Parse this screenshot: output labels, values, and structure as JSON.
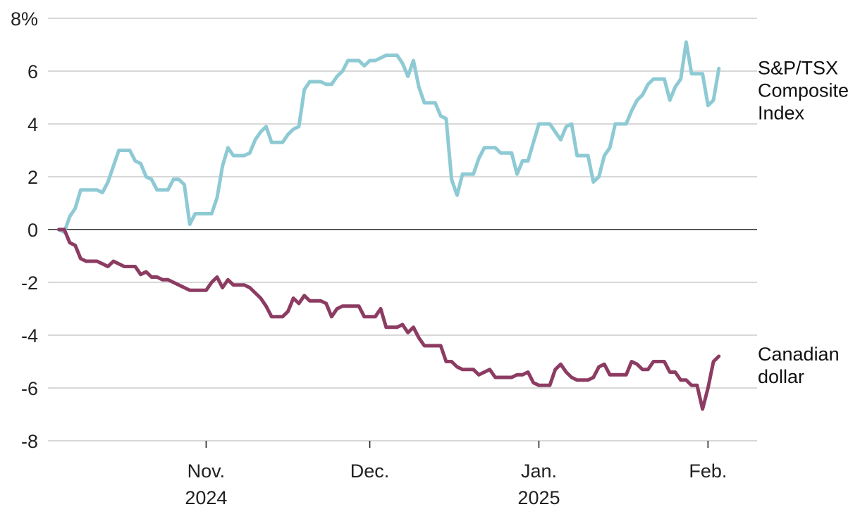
{
  "chart_data": {
    "type": "line",
    "title": "",
    "xlabel": "",
    "ylabel": "",
    "y_unit_suffix": "%",
    "ylim": [
      -8,
      8
    ],
    "y_ticks": [
      8,
      6,
      4,
      2,
      0,
      -2,
      -4,
      -6,
      -8
    ],
    "y_tick_labels": [
      "8%",
      "6",
      "4",
      "2",
      "0",
      "-2",
      "-4",
      "-6",
      "-8"
    ],
    "x_range_days": [
      0,
      130
    ],
    "x_ticks": [
      {
        "day": 29,
        "label_line1": "Nov.",
        "label_line2": "2024"
      },
      {
        "day": 59,
        "label_line1": "Dec.",
        "label_line2": ""
      },
      {
        "day": 90,
        "label_line1": "Jan.",
        "label_line2": "2025"
      },
      {
        "day": 121,
        "label_line1": "Feb.",
        "label_line2": ""
      }
    ],
    "series": [
      {
        "name": "S&P/TSX Composite Index",
        "label_lines": [
          "S&P/TSX",
          "Composite",
          "Index"
        ],
        "color": "#8ecad4",
        "points": [
          [
            2,
            0.0
          ],
          [
            3,
            -0.1
          ],
          [
            4,
            0.5
          ],
          [
            5,
            0.8
          ],
          [
            6,
            1.5
          ],
          [
            7,
            1.5
          ],
          [
            8,
            1.5
          ],
          [
            9,
            1.5
          ],
          [
            10,
            1.4
          ],
          [
            11,
            1.8
          ],
          [
            12,
            2.4
          ],
          [
            13,
            3.0
          ],
          [
            14,
            3.0
          ],
          [
            15,
            3.0
          ],
          [
            16,
            2.6
          ],
          [
            17,
            2.5
          ],
          [
            18,
            2.0
          ],
          [
            19,
            1.9
          ],
          [
            20,
            1.5
          ],
          [
            21,
            1.5
          ],
          [
            22,
            1.5
          ],
          [
            23,
            1.9
          ],
          [
            24,
            1.9
          ],
          [
            25,
            1.7
          ],
          [
            26,
            0.2
          ],
          [
            27,
            0.6
          ],
          [
            28,
            0.6
          ],
          [
            29,
            0.6
          ],
          [
            30,
            0.6
          ],
          [
            31,
            1.2
          ],
          [
            32,
            2.4
          ],
          [
            33,
            3.1
          ],
          [
            34,
            2.8
          ],
          [
            35,
            2.8
          ],
          [
            36,
            2.8
          ],
          [
            37,
            2.9
          ],
          [
            38,
            3.4
          ],
          [
            39,
            3.7
          ],
          [
            40,
            3.9
          ],
          [
            41,
            3.3
          ],
          [
            42,
            3.3
          ],
          [
            43,
            3.3
          ],
          [
            44,
            3.6
          ],
          [
            45,
            3.8
          ],
          [
            46,
            3.9
          ],
          [
            47,
            5.3
          ],
          [
            48,
            5.6
          ],
          [
            49,
            5.6
          ],
          [
            50,
            5.6
          ],
          [
            51,
            5.5
          ],
          [
            52,
            5.5
          ],
          [
            53,
            5.8
          ],
          [
            54,
            6.0
          ],
          [
            55,
            6.4
          ],
          [
            56,
            6.4
          ],
          [
            57,
            6.4
          ],
          [
            58,
            6.2
          ],
          [
            59,
            6.4
          ],
          [
            60,
            6.4
          ],
          [
            61,
            6.5
          ],
          [
            62,
            6.6
          ],
          [
            63,
            6.6
          ],
          [
            64,
            6.6
          ],
          [
            65,
            6.3
          ],
          [
            66,
            5.8
          ],
          [
            67,
            6.4
          ],
          [
            68,
            5.4
          ],
          [
            69,
            4.8
          ],
          [
            70,
            4.8
          ],
          [
            71,
            4.8
          ],
          [
            72,
            4.3
          ],
          [
            73,
            4.2
          ],
          [
            74,
            1.9
          ],
          [
            75,
            1.3
          ],
          [
            76,
            2.1
          ],
          [
            77,
            2.1
          ],
          [
            78,
            2.1
          ],
          [
            79,
            2.7
          ],
          [
            80,
            3.1
          ],
          [
            81,
            3.1
          ],
          [
            82,
            3.1
          ],
          [
            83,
            2.9
          ],
          [
            84,
            2.9
          ],
          [
            85,
            2.9
          ],
          [
            86,
            2.1
          ],
          [
            87,
            2.6
          ],
          [
            88,
            2.6
          ],
          [
            89,
            3.3
          ],
          [
            90,
            4.0
          ],
          [
            91,
            4.0
          ],
          [
            92,
            4.0
          ],
          [
            93,
            3.7
          ],
          [
            94,
            3.4
          ],
          [
            95,
            3.9
          ],
          [
            96,
            4.0
          ],
          [
            97,
            2.8
          ],
          [
            98,
            2.8
          ],
          [
            99,
            2.8
          ],
          [
            100,
            1.8
          ],
          [
            101,
            2.0
          ],
          [
            102,
            2.8
          ],
          [
            103,
            3.1
          ],
          [
            104,
            4.0
          ],
          [
            105,
            4.0
          ],
          [
            106,
            4.0
          ],
          [
            107,
            4.5
          ],
          [
            108,
            4.9
          ],
          [
            109,
            5.1
          ],
          [
            110,
            5.5
          ],
          [
            111,
            5.7
          ],
          [
            112,
            5.7
          ],
          [
            113,
            5.7
          ],
          [
            114,
            4.9
          ],
          [
            115,
            5.4
          ],
          [
            116,
            5.7
          ],
          [
            117,
            7.1
          ],
          [
            118,
            5.9
          ],
          [
            119,
            5.9
          ],
          [
            120,
            5.9
          ],
          [
            121,
            4.7
          ],
          [
            122,
            4.9
          ],
          [
            123,
            6.1
          ]
        ]
      },
      {
        "name": "Canadian dollar",
        "label_lines": [
          "Canadian",
          "dollar"
        ],
        "color": "#8c3c62",
        "points": [
          [
            2,
            0.0
          ],
          [
            3,
            0.0
          ],
          [
            4,
            -0.5
          ],
          [
            5,
            -0.6
          ],
          [
            6,
            -1.1
          ],
          [
            7,
            -1.2
          ],
          [
            8,
            -1.2
          ],
          [
            9,
            -1.2
          ],
          [
            10,
            -1.3
          ],
          [
            11,
            -1.4
          ],
          [
            12,
            -1.2
          ],
          [
            13,
            -1.3
          ],
          [
            14,
            -1.4
          ],
          [
            15,
            -1.4
          ],
          [
            16,
            -1.4
          ],
          [
            17,
            -1.7
          ],
          [
            18,
            -1.6
          ],
          [
            19,
            -1.8
          ],
          [
            20,
            -1.8
          ],
          [
            21,
            -1.9
          ],
          [
            22,
            -1.9
          ],
          [
            23,
            -2.0
          ],
          [
            24,
            -2.1
          ],
          [
            25,
            -2.2
          ],
          [
            26,
            -2.3
          ],
          [
            27,
            -2.3
          ],
          [
            28,
            -2.3
          ],
          [
            29,
            -2.3
          ],
          [
            30,
            -2.0
          ],
          [
            31,
            -1.8
          ],
          [
            32,
            -2.2
          ],
          [
            33,
            -1.9
          ],
          [
            34,
            -2.1
          ],
          [
            35,
            -2.1
          ],
          [
            36,
            -2.1
          ],
          [
            37,
            -2.2
          ],
          [
            38,
            -2.4
          ],
          [
            39,
            -2.6
          ],
          [
            40,
            -2.9
          ],
          [
            41,
            -3.3
          ],
          [
            42,
            -3.3
          ],
          [
            43,
            -3.3
          ],
          [
            44,
            -3.1
          ],
          [
            45,
            -2.6
          ],
          [
            46,
            -2.8
          ],
          [
            47,
            -2.5
          ],
          [
            48,
            -2.7
          ],
          [
            49,
            -2.7
          ],
          [
            50,
            -2.7
          ],
          [
            51,
            -2.8
          ],
          [
            52,
            -3.3
          ],
          [
            53,
            -3.0
          ],
          [
            54,
            -2.9
          ],
          [
            55,
            -2.9
          ],
          [
            56,
            -2.9
          ],
          [
            57,
            -2.9
          ],
          [
            58,
            -3.3
          ],
          [
            59,
            -3.3
          ],
          [
            60,
            -3.3
          ],
          [
            61,
            -3.0
          ],
          [
            62,
            -3.7
          ],
          [
            63,
            -3.7
          ],
          [
            64,
            -3.7
          ],
          [
            65,
            -3.6
          ],
          [
            66,
            -3.9
          ],
          [
            67,
            -3.7
          ],
          [
            68,
            -4.1
          ],
          [
            69,
            -4.4
          ],
          [
            70,
            -4.4
          ],
          [
            71,
            -4.4
          ],
          [
            72,
            -4.4
          ],
          [
            73,
            -5.0
          ],
          [
            74,
            -5.0
          ],
          [
            75,
            -5.2
          ],
          [
            76,
            -5.3
          ],
          [
            77,
            -5.3
          ],
          [
            78,
            -5.3
          ],
          [
            79,
            -5.5
          ],
          [
            80,
            -5.4
          ],
          [
            81,
            -5.3
          ],
          [
            82,
            -5.6
          ],
          [
            83,
            -5.6
          ],
          [
            84,
            -5.6
          ],
          [
            85,
            -5.6
          ],
          [
            86,
            -5.5
          ],
          [
            87,
            -5.5
          ],
          [
            88,
            -5.4
          ],
          [
            89,
            -5.8
          ],
          [
            90,
            -5.9
          ],
          [
            91,
            -5.9
          ],
          [
            92,
            -5.9
          ],
          [
            93,
            -5.3
          ],
          [
            94,
            -5.1
          ],
          [
            95,
            -5.4
          ],
          [
            96,
            -5.6
          ],
          [
            97,
            -5.7
          ],
          [
            98,
            -5.7
          ],
          [
            99,
            -5.7
          ],
          [
            100,
            -5.6
          ],
          [
            101,
            -5.2
          ],
          [
            102,
            -5.1
          ],
          [
            103,
            -5.5
          ],
          [
            104,
            -5.5
          ],
          [
            105,
            -5.5
          ],
          [
            106,
            -5.5
          ],
          [
            107,
            -5.0
          ],
          [
            108,
            -5.1
          ],
          [
            109,
            -5.3
          ],
          [
            110,
            -5.3
          ],
          [
            111,
            -5.0
          ],
          [
            112,
            -5.0
          ],
          [
            113,
            -5.0
          ],
          [
            114,
            -5.4
          ],
          [
            115,
            -5.4
          ],
          [
            116,
            -5.7
          ],
          [
            117,
            -5.7
          ],
          [
            118,
            -5.9
          ],
          [
            119,
            -5.9
          ],
          [
            120,
            -6.8
          ],
          [
            121,
            -6.0
          ],
          [
            122,
            -5.0
          ],
          [
            123,
            -4.8
          ]
        ]
      }
    ]
  }
}
